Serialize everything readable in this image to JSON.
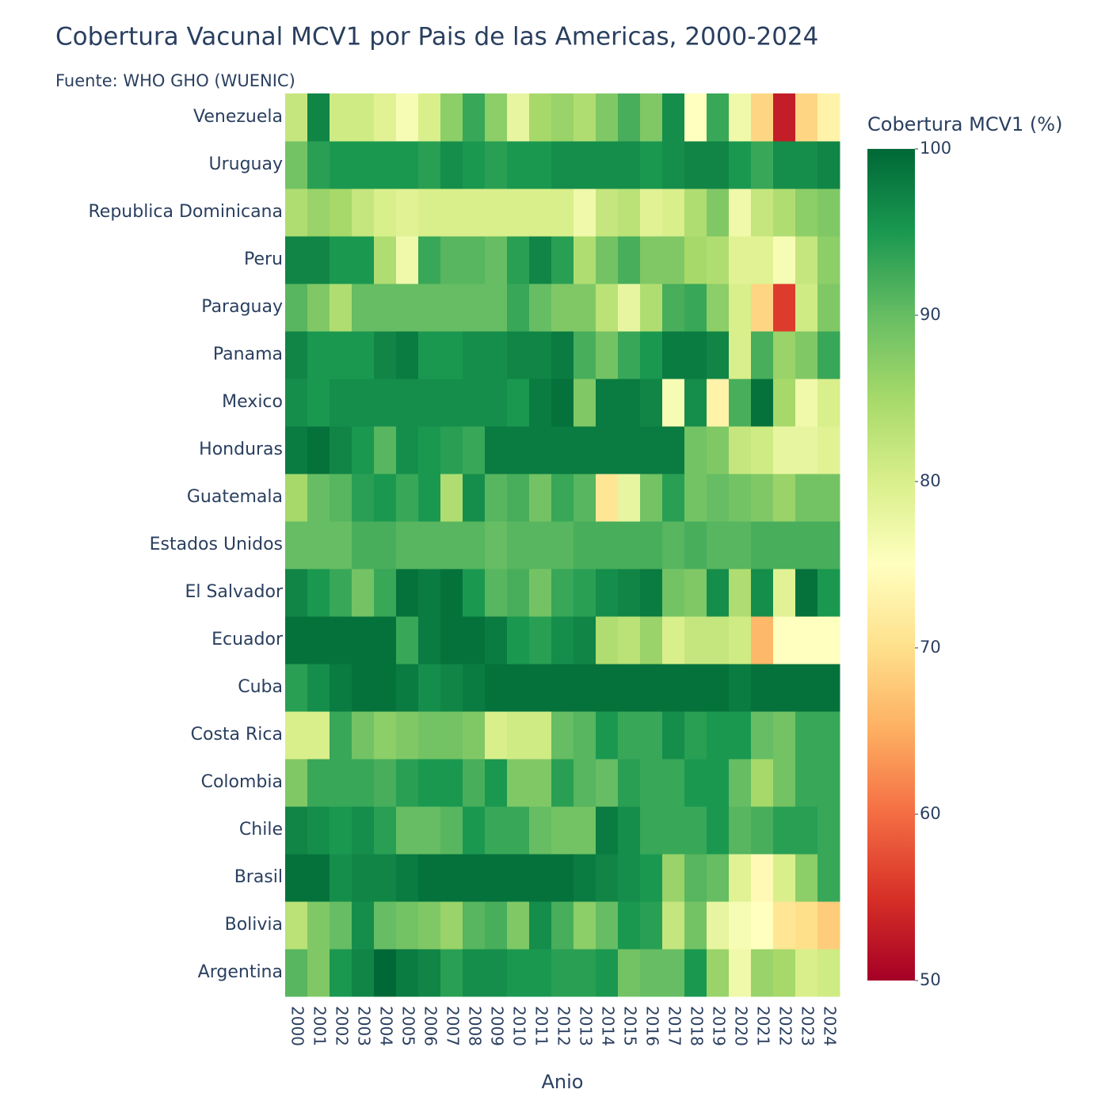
{
  "chart_data": {
    "type": "heatmap",
    "title": "Cobertura Vacunal MCV1 por Pais de las Americas, 2000-2024",
    "subtitle": "Fuente: WHO GHO (WUENIC)",
    "x_label": "Anio",
    "colorbar_title": "Cobertura MCV1 (%)",
    "colorscale": "RdYlGn",
    "zlim": [
      50,
      100
    ],
    "zticks": [
      50,
      60,
      70,
      80,
      90,
      100
    ],
    "x": [
      "2000",
      "2001",
      "2002",
      "2003",
      "2004",
      "2005",
      "2006",
      "2007",
      "2008",
      "2009",
      "2010",
      "2011",
      "2012",
      "2013",
      "2014",
      "2015",
      "2016",
      "2017",
      "2018",
      "2019",
      "2020",
      "2021",
      "2022",
      "2023",
      "2024"
    ],
    "categories": [
      "Argentina",
      "Bolivia",
      "Brasil",
      "Chile",
      "Colombia",
      "Costa Rica",
      "Cuba",
      "Ecuador",
      "El Salvador",
      "Estados Unidos",
      "Guatemala",
      "Honduras",
      "Mexico",
      "Panama",
      "Paraguay",
      "Peru",
      "Republica Dominicana",
      "Uruguay",
      "Venezuela"
    ],
    "z": [
      [
        91,
        88,
        95,
        97,
        100,
        98,
        97,
        94,
        96,
        96,
        95,
        95,
        94,
        94,
        95,
        89,
        90,
        90,
        95,
        86,
        77,
        86,
        85,
        80,
        81
      ],
      [
        83,
        88,
        90,
        96,
        90,
        89,
        88,
        86,
        91,
        92,
        88,
        96,
        92,
        87,
        90,
        95,
        94,
        82,
        89,
        78,
        76,
        75,
        71,
        70,
        68
      ],
      [
        99,
        99,
        96,
        97,
        97,
        98,
        99,
        99,
        99,
        99,
        99,
        99,
        99,
        98,
        97,
        96,
        95,
        86,
        91,
        90,
        79,
        74,
        80,
        87,
        93
      ],
      [
        97,
        96,
        95,
        96,
        94,
        90,
        90,
        91,
        95,
        93,
        93,
        90,
        89,
        89,
        98,
        96,
        93,
        93,
        93,
        95,
        91,
        92,
        94,
        94,
        93
      ],
      [
        88,
        93,
        93,
        93,
        92,
        94,
        95,
        95,
        92,
        95,
        88,
        88,
        94,
        91,
        90,
        94,
        93,
        93,
        95,
        95,
        90,
        85,
        89,
        93,
        93
      ],
      [
        80,
        80,
        93,
        89,
        87,
        88,
        89,
        89,
        88,
        80,
        81,
        81,
        90,
        91,
        95,
        93,
        93,
        96,
        94,
        95,
        95,
        90,
        89,
        93,
        93
      ],
      [
        94,
        96,
        98,
        99,
        99,
        98,
        96,
        97,
        98,
        99,
        99,
        99,
        99,
        99,
        99,
        99,
        99,
        99,
        99,
        99,
        98,
        99,
        99,
        99,
        99
      ],
      [
        99,
        99,
        99,
        99,
        99,
        93,
        98,
        99,
        99,
        98,
        95,
        94,
        96,
        97,
        84,
        83,
        86,
        80,
        82,
        82,
        81,
        66,
        75,
        75,
        75
      ],
      [
        97,
        95,
        93,
        89,
        93,
        99,
        98,
        99,
        95,
        91,
        92,
        89,
        93,
        94,
        96,
        97,
        98,
        89,
        88,
        96,
        84,
        96,
        79,
        99,
        95
      ],
      [
        90,
        90,
        90,
        92,
        92,
        91,
        91,
        91,
        91,
        90,
        91,
        91,
        91,
        92,
        92,
        92,
        92,
        91,
        92,
        91,
        91,
        92,
        92,
        92,
        92
      ],
      [
        85,
        90,
        91,
        94,
        95,
        93,
        95,
        84,
        96,
        91,
        92,
        89,
        93,
        91,
        71,
        78,
        89,
        94,
        89,
        90,
        89,
        88,
        86,
        89,
        89
      ],
      [
        98,
        99,
        97,
        95,
        91,
        96,
        95,
        94,
        93,
        98,
        98,
        98,
        98,
        98,
        98,
        98,
        98,
        98,
        89,
        88,
        82,
        81,
        78,
        78,
        79
      ],
      [
        96,
        95,
        96,
        96,
        96,
        96,
        96,
        96,
        96,
        96,
        95,
        98,
        99,
        88,
        98,
        98,
        97,
        76,
        96,
        73,
        92,
        99,
        85,
        77,
        80
      ],
      [
        97,
        95,
        95,
        95,
        97,
        98,
        95,
        95,
        96,
        96,
        97,
        97,
        98,
        92,
        89,
        93,
        95,
        98,
        98,
        97,
        80,
        92,
        86,
        88,
        93
      ],
      [
        91,
        88,
        84,
        90,
        90,
        90,
        90,
        90,
        90,
        90,
        93,
        90,
        88,
        88,
        83,
        78,
        84,
        92,
        93,
        87,
        80,
        69,
        56,
        81,
        88
      ],
      [
        97,
        97,
        95,
        95,
        84,
        77,
        93,
        91,
        91,
        90,
        94,
        97,
        94,
        84,
        89,
        92,
        88,
        88,
        85,
        84,
        79,
        79,
        76,
        82,
        87
      ],
      [
        84,
        86,
        85,
        82,
        80,
        79,
        80,
        80,
        80,
        80,
        80,
        80,
        80,
        77,
        82,
        83,
        79,
        80,
        84,
        88,
        77,
        82,
        84,
        87,
        88
      ],
      [
        89,
        94,
        95,
        95,
        95,
        95,
        94,
        96,
        95,
        94,
        95,
        95,
        96,
        96,
        96,
        96,
        95,
        96,
        97,
        97,
        95,
        93,
        96,
        96,
        97
      ],
      [
        82,
        97,
        81,
        81,
        79,
        76,
        80,
        87,
        93,
        87,
        78,
        85,
        86,
        84,
        88,
        92,
        88,
        96,
        75,
        93,
        77,
        69,
        53,
        69,
        73
      ]
    ]
  }
}
